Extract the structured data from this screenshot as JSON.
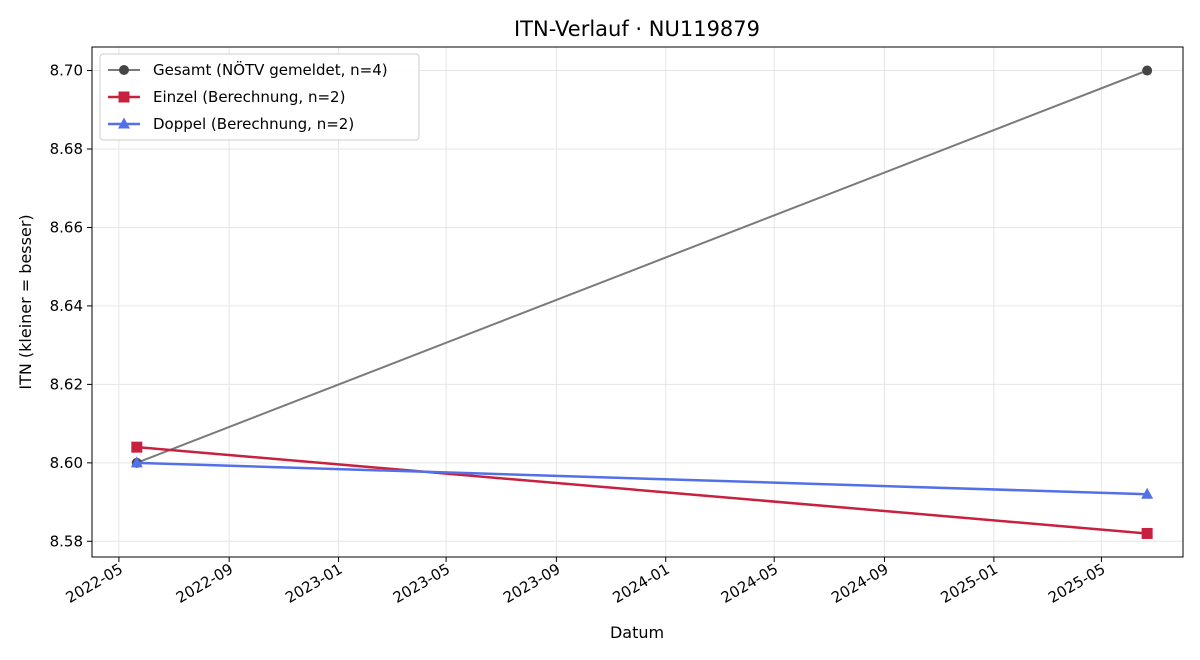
{
  "chart_data": {
    "type": "line",
    "title": "ITN-Verlauf · NU119879",
    "xlabel": "Datum",
    "ylabel": "ITN  (kleiner = besser)",
    "xlim": [
      "2022-04-01",
      "2025-07-31"
    ],
    "ylim": [
      8.576,
      8.706
    ],
    "x_ticks": [
      "2022-05",
      "2022-09",
      "2023-01",
      "2023-05",
      "2023-09",
      "2024-01",
      "2024-05",
      "2024-09",
      "2025-01",
      "2025-05"
    ],
    "y_ticks": [
      "8.58",
      "8.60",
      "8.62",
      "8.64",
      "8.66",
      "8.68",
      "8.70"
    ],
    "grid": true,
    "legend_position": "top-left",
    "series": [
      {
        "name": "Gesamt (NÖTV gemeldet, n=4)",
        "color": "#7a7a7a",
        "marker": "circle",
        "x": [
          "2022-05-21",
          "2025-06-21"
        ],
        "y": [
          8.6,
          8.7
        ]
      },
      {
        "name": "Einzel (Berechnung, n=2)",
        "color": "#c8203f",
        "marker": "square",
        "x": [
          "2022-05-21",
          "2025-06-21"
        ],
        "y": [
          8.604,
          8.582
        ]
      },
      {
        "name": "Doppel (Berechnung, n=2)",
        "color": "#5470e8",
        "marker": "triangle",
        "x": [
          "2022-05-21",
          "2025-06-21"
        ],
        "y": [
          8.6,
          8.592
        ]
      }
    ]
  }
}
